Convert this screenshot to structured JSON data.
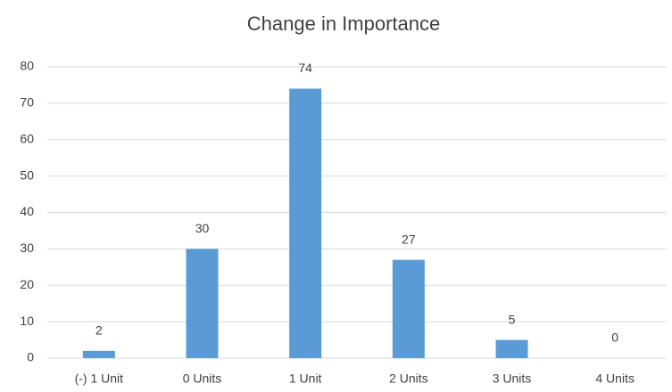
{
  "chart_data": {
    "type": "bar",
    "title": "Change in Importance",
    "categories": [
      "(-) 1 Unit",
      "0 Units",
      "1 Unit",
      "2 Units",
      "3 Units",
      "4 Units"
    ],
    "values": [
      2,
      30,
      74,
      27,
      5,
      0
    ],
    "color": "#5b9bd5",
    "ylim": [
      0,
      80
    ],
    "yticks": [
      0,
      10,
      20,
      30,
      40,
      50,
      60,
      70,
      80
    ],
    "grid": true
  }
}
